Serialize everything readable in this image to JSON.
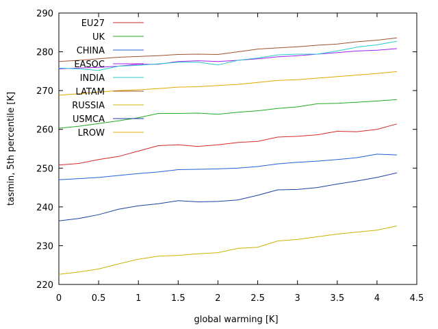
{
  "chart_data": {
    "type": "line",
    "xlabel": "global warming [K]",
    "ylabel": "tasmin, 5th percentile [K]",
    "xlim": [
      0,
      4.5
    ],
    "ylim": [
      220,
      290
    ],
    "x_ticks": [
      0,
      0.5,
      1,
      1.5,
      2,
      2.5,
      3,
      3.5,
      4,
      4.5
    ],
    "x_tick_labels": [
      "0",
      "0.5",
      "1",
      "1.5",
      "2",
      "2.5",
      "3",
      "3.5",
      "4",
      "4.5"
    ],
    "y_ticks": [
      220,
      230,
      240,
      250,
      260,
      270,
      280,
      290
    ],
    "y_tick_labels": [
      "220",
      "230",
      "240",
      "250",
      "260",
      "270",
      "280",
      "290"
    ],
    "grid": false,
    "legend_position": "top-left",
    "x": [
      0,
      0.25,
      0.5,
      0.75,
      1,
      1.25,
      1.5,
      1.75,
      2,
      2.25,
      2.5,
      2.75,
      3,
      3.25,
      3.5,
      3.75,
      4,
      4.25
    ],
    "series": [
      {
        "name": "EU27",
        "color": "#d62728",
        "values": [
          250.8,
          251.2,
          252.2,
          253.0,
          254.4,
          255.8,
          256.0,
          255.6,
          256.0,
          256.6,
          256.9,
          258.0,
          258.2,
          258.6,
          259.5,
          259.4,
          260.0,
          261.4
        ]
      },
      {
        "name": "UK",
        "color": "#22aa22",
        "values": [
          260.3,
          260.8,
          261.5,
          262.2,
          263.0,
          264.1,
          264.1,
          264.2,
          263.9,
          264.4,
          264.8,
          265.4,
          265.8,
          266.6,
          266.7,
          267.0,
          267.3,
          267.7
        ]
      },
      {
        "name": "CHINA",
        "color": "#1f5fd6",
        "values": [
          247.0,
          247.3,
          247.6,
          248.1,
          248.6,
          249.0,
          249.6,
          249.7,
          249.8,
          250.0,
          250.4,
          251.1,
          251.5,
          251.8,
          252.2,
          252.7,
          253.6,
          253.4
        ]
      },
      {
        "name": "EASOC",
        "color": "#a020f0",
        "values": [
          275.6,
          275.8,
          276.0,
          276.3,
          276.8,
          276.8,
          277.5,
          277.7,
          277.5,
          277.8,
          278.2,
          278.7,
          279.0,
          279.4,
          279.8,
          280.2,
          280.4,
          280.8
        ]
      },
      {
        "name": "INDIA",
        "color": "#22cccc",
        "values": [
          275.8,
          275.6,
          275.2,
          276.3,
          276.5,
          276.9,
          277.3,
          277.3,
          276.6,
          277.8,
          278.4,
          279.2,
          279.4,
          279.4,
          280.2,
          281.2,
          281.8,
          282.7
        ]
      },
      {
        "name": "LATAM",
        "color": "#a0522d",
        "values": [
          277.5,
          277.8,
          278.2,
          278.6,
          278.8,
          279.0,
          279.3,
          279.4,
          279.3,
          280.0,
          280.7,
          281.0,
          281.3,
          281.7,
          282.0,
          282.6,
          283.0,
          283.6
        ]
      },
      {
        "name": "RUSSIA",
        "color": "#c8b400",
        "values": [
          222.6,
          223.2,
          224.0,
          225.3,
          226.5,
          227.3,
          227.5,
          227.9,
          228.2,
          229.3,
          229.6,
          231.2,
          231.6,
          232.3,
          233.0,
          233.5,
          234.0,
          235.1
        ]
      },
      {
        "name": "USMCA",
        "color": "#1a3fa0",
        "values": [
          236.4,
          237.0,
          238.0,
          239.4,
          240.3,
          240.8,
          241.6,
          241.3,
          241.4,
          241.8,
          243.0,
          244.4,
          244.5,
          245.0,
          245.9,
          246.7,
          247.6,
          248.8
        ]
      },
      {
        "name": "LROW",
        "color": "#e0a800",
        "values": [
          268.8,
          269.2,
          269.6,
          270.0,
          270.2,
          270.5,
          270.9,
          271.0,
          271.3,
          271.6,
          272.1,
          272.6,
          272.8,
          273.2,
          273.6,
          274.0,
          274.4,
          274.9
        ]
      }
    ]
  }
}
